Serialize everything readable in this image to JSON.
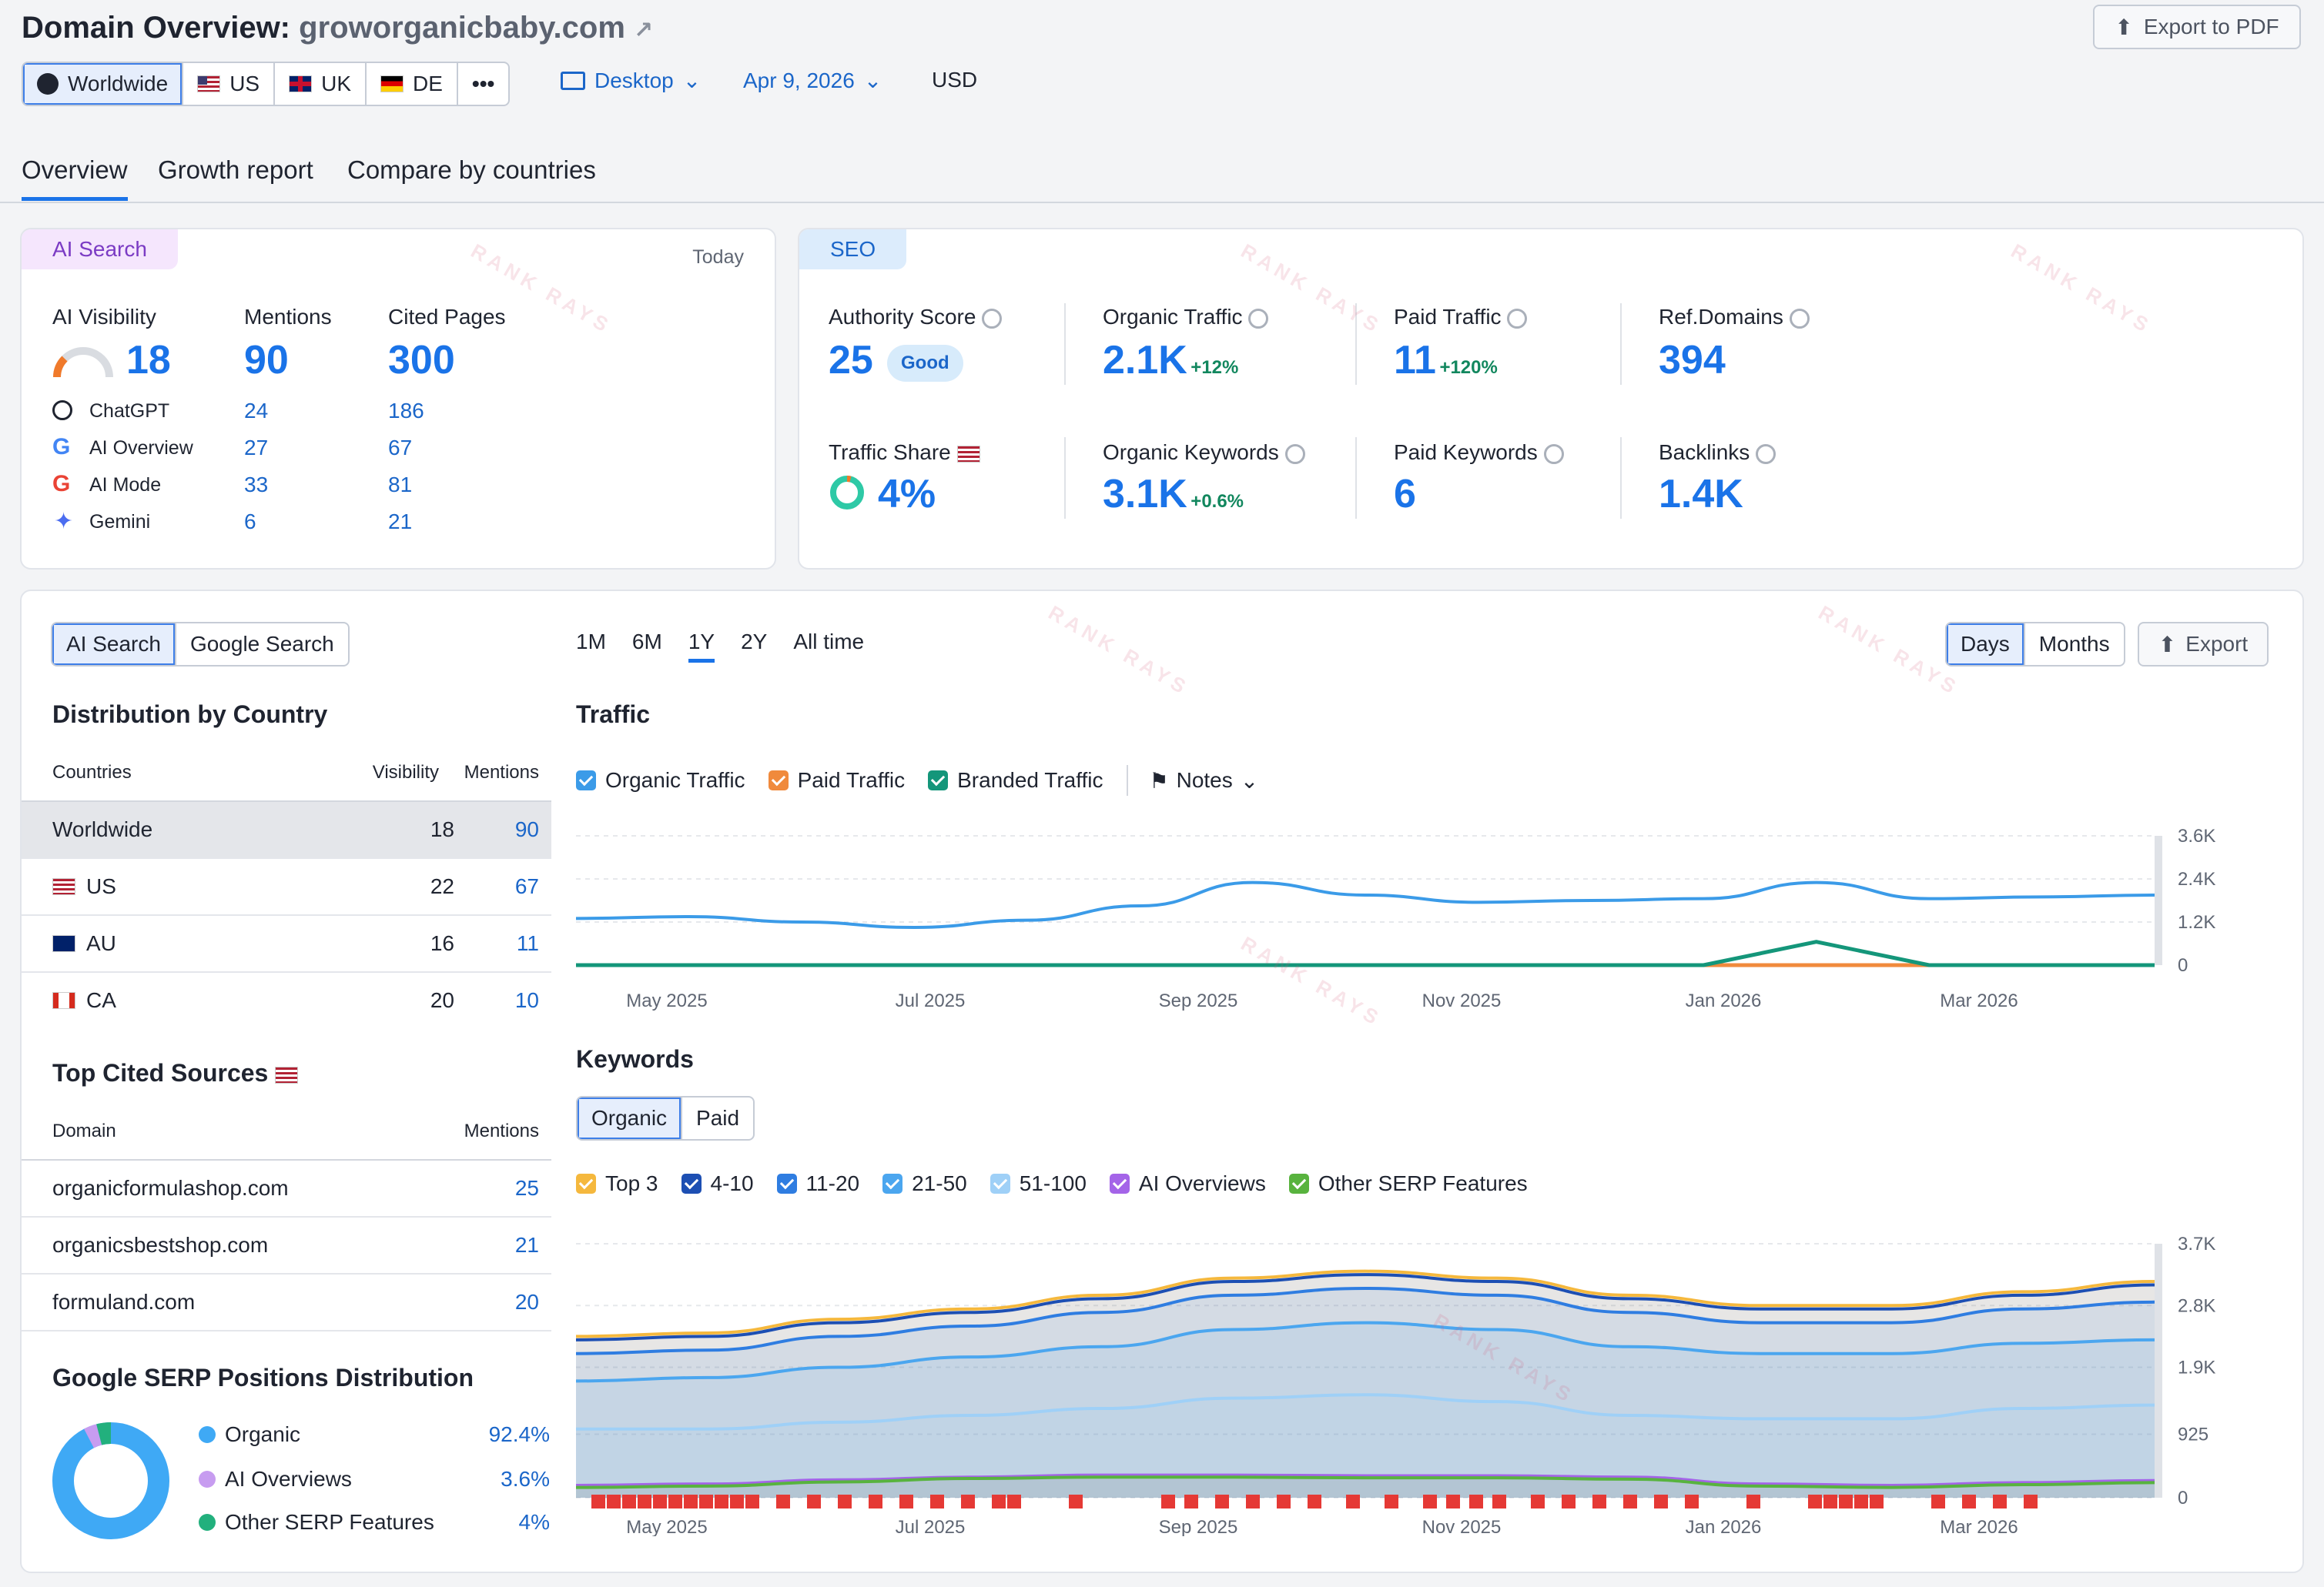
{
  "header": {
    "title_prefix": "Domain Overview:",
    "domain": "groworganicbaby.com",
    "export_pdf": "Export to PDF",
    "regions": [
      "Worldwide",
      "US",
      "UK",
      "DE"
    ],
    "more": "•••",
    "device": "Desktop",
    "date": "Apr 9, 2026",
    "currency": "USD"
  },
  "tabs": [
    "Overview",
    "Growth report",
    "Compare by countries"
  ],
  "ai_card": {
    "badge": "AI Search",
    "today": "Today",
    "cols": [
      "AI Visibility",
      "Mentions",
      "Cited Pages"
    ],
    "visibility": "18",
    "mentions": "90",
    "cited": "300",
    "rows": [
      {
        "name": "ChatGPT",
        "mentions": "24",
        "cited": "186"
      },
      {
        "name": "AI Overview",
        "mentions": "27",
        "cited": "67"
      },
      {
        "name": "AI Mode",
        "mentions": "33",
        "cited": "81"
      },
      {
        "name": "Gemini",
        "mentions": "6",
        "cited": "21"
      }
    ]
  },
  "seo_card": {
    "badge": "SEO",
    "authority_label": "Authority Score",
    "authority_value": "25",
    "authority_badge": "Good",
    "organic_label": "Organic Traffic",
    "organic_value": "2.1K",
    "organic_delta": "+12%",
    "paid_label": "Paid Traffic",
    "paid_value": "11",
    "paid_delta": "+120%",
    "ref_label": "Ref.Domains",
    "ref_value": "394",
    "share_label": "Traffic Share",
    "share_value": "4%",
    "okw_label": "Organic Keywords",
    "okw_value": "3.1K",
    "okw_delta": "+0.6%",
    "pkw_label": "Paid Keywords",
    "pkw_value": "6",
    "bl_label": "Backlinks",
    "bl_value": "1.4K"
  },
  "left_panel": {
    "toggle": [
      "AI Search",
      "Google Search"
    ],
    "dist_title": "Distribution by Country",
    "dist_headers": [
      "Countries",
      "Visibility",
      "Mentions"
    ],
    "dist_rows": [
      {
        "country": "Worldwide",
        "visibility": "18",
        "mentions": "90"
      },
      {
        "country": "US",
        "visibility": "22",
        "mentions": "67"
      },
      {
        "country": "AU",
        "visibility": "16",
        "mentions": "11"
      },
      {
        "country": "CA",
        "visibility": "20",
        "mentions": "10"
      }
    ],
    "cited_title": "Top Cited Sources",
    "cited_headers": [
      "Domain",
      "Mentions"
    ],
    "cited_rows": [
      {
        "domain": "organicformulashop.com",
        "mentions": "25"
      },
      {
        "domain": "organicsbestshop.com",
        "mentions": "21"
      },
      {
        "domain": "formuland.com",
        "mentions": "20"
      }
    ],
    "serp_title": "Google SERP Positions Distribution",
    "serp_rows": [
      {
        "label": "Organic",
        "value": "92.4%",
        "color": "#3fa9f5"
      },
      {
        "label": "AI Overviews",
        "value": "3.6%",
        "color": "#c79cf0"
      },
      {
        "label": "Other SERP Features",
        "value": "4%",
        "color": "#22b07d"
      }
    ]
  },
  "charts": {
    "ranges": [
      "1M",
      "6M",
      "1Y",
      "2Y",
      "All time"
    ],
    "active_range": "1Y",
    "granularity": [
      "Days",
      "Months"
    ],
    "export": "Export",
    "traffic_title": "Traffic",
    "traffic_legend": [
      {
        "label": "Organic Traffic",
        "color": "#3b9be8"
      },
      {
        "label": "Paid Traffic",
        "color": "#f08a3c"
      },
      {
        "label": "Branded Traffic",
        "color": "#14967a"
      }
    ],
    "notes": "Notes",
    "traffic_y_ticks": [
      "3.6K",
      "2.4K",
      "1.2K",
      "0"
    ],
    "x_ticks": [
      "May 2025",
      "Jul 2025",
      "Sep 2025",
      "Nov 2025",
      "Jan 2026",
      "Mar 2026"
    ],
    "keywords_title": "Keywords",
    "kw_toggle": [
      "Organic",
      "Paid"
    ],
    "kw_legend": [
      {
        "label": "Top 3",
        "color": "#f5b83d"
      },
      {
        "label": "4-10",
        "color": "#1d4fb3"
      },
      {
        "label": "11-20",
        "color": "#2f7de1"
      },
      {
        "label": "21-50",
        "color": "#4ba6ef"
      },
      {
        "label": "51-100",
        "color": "#9fd0f7"
      },
      {
        "label": "AI Overviews",
        "color": "#a464e8"
      },
      {
        "label": "Other SERP Features",
        "color": "#58b33e"
      }
    ],
    "kw_y_ticks": [
      "3.7K",
      "2.8K",
      "1.9K",
      "925",
      "0"
    ]
  },
  "chart_data": [
    {
      "type": "line",
      "title": "Traffic",
      "ylim": [
        0,
        3600
      ],
      "x": [
        "Apr 2025",
        "May 2025",
        "Jun 2025",
        "Jul 2025",
        "Aug 2025",
        "Aug 2025b",
        "Sep 2025",
        "Oct 2025",
        "Nov 2025",
        "Dec 2025",
        "Dec 2025b",
        "Jan 2026",
        "Feb 2026",
        "Mar 2026",
        "Apr 2026"
      ],
      "series": [
        {
          "name": "Organic Traffic",
          "values": [
            1300,
            1350,
            1200,
            1050,
            1250,
            1650,
            2300,
            1950,
            1750,
            1800,
            1850,
            2300,
            1850,
            1900,
            1950
          ]
        },
        {
          "name": "Paid Traffic",
          "values": [
            0,
            0,
            0,
            0,
            0,
            0,
            0,
            0,
            0,
            0,
            0,
            0,
            0,
            0,
            0
          ]
        },
        {
          "name": "Branded Traffic",
          "values": [
            0,
            0,
            0,
            0,
            0,
            0,
            0,
            0,
            0,
            0,
            0,
            650,
            0,
            0,
            0
          ]
        }
      ]
    },
    {
      "type": "area",
      "title": "Keywords",
      "ylim": [
        0,
        3700
      ],
      "x": [
        "Apr 2025",
        "May 2025",
        "Jun 2025",
        "Jul 2025",
        "Aug 2025",
        "Sep 2025",
        "Oct 2025",
        "Nov 2025",
        "Dec 2025",
        "Jan 2026",
        "Feb 2026",
        "Mar 2026",
        "Apr 2026"
      ],
      "series": [
        {
          "name": "Top 3",
          "values": [
            2350,
            2400,
            2600,
            2750,
            2950,
            3200,
            3300,
            3200,
            2950,
            2800,
            2800,
            3000,
            3150
          ]
        },
        {
          "name": "4-10",
          "values": [
            2300,
            2350,
            2550,
            2700,
            2900,
            3150,
            3250,
            3150,
            2900,
            2750,
            2750,
            2950,
            3100
          ]
        },
        {
          "name": "11-20",
          "values": [
            2100,
            2150,
            2350,
            2500,
            2700,
            2950,
            3050,
            2950,
            2700,
            2550,
            2550,
            2750,
            2850
          ]
        },
        {
          "name": "21-50",
          "values": [
            1700,
            1750,
            1900,
            2050,
            2200,
            2450,
            2550,
            2450,
            2200,
            2100,
            2100,
            2250,
            2300
          ]
        },
        {
          "name": "51-100",
          "values": [
            1000,
            1000,
            1100,
            1200,
            1300,
            1450,
            1500,
            1400,
            1200,
            1150,
            1150,
            1300,
            1350
          ]
        },
        {
          "name": "AI Overviews",
          "values": [
            180,
            200,
            260,
            300,
            330,
            330,
            320,
            320,
            300,
            200,
            180,
            220,
            250
          ]
        },
        {
          "name": "Other SERP Features",
          "values": [
            150,
            170,
            230,
            280,
            300,
            300,
            290,
            290,
            270,
            170,
            150,
            190,
            220
          ]
        }
      ]
    }
  ]
}
